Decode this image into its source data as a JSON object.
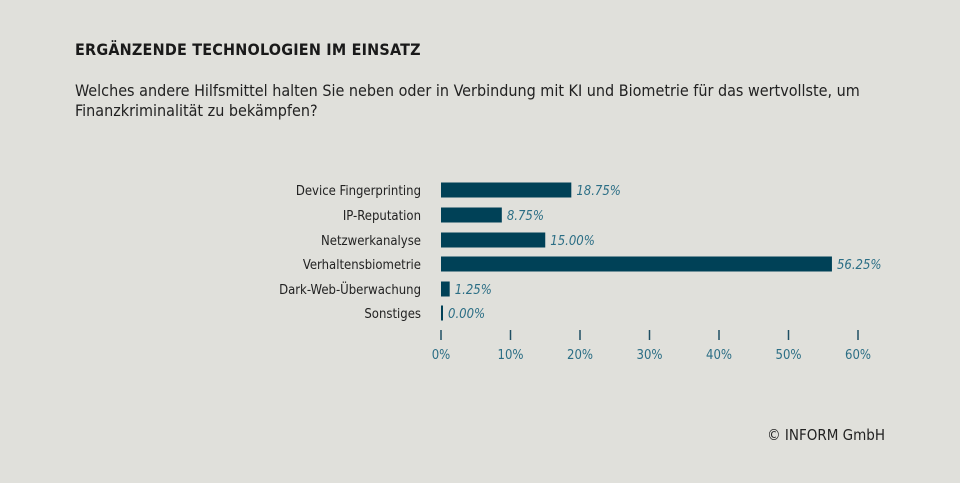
{
  "title": "ERGÄNZENDE TECHNOLOGIEN IM EINSATZ",
  "subtitle": "Welches andere Hilfsmittel halten Sie neben oder in Verbindung mit KI und Biometrie für das wertvollste, um Finanzkriminalität zu bekämpfen?",
  "copyright": "© INFORM GmbH",
  "chart_data": {
    "type": "bar",
    "orientation": "horizontal",
    "categories": [
      "Device Fingerprinting",
      "IP-Reputation",
      "Netzwerkanalyse",
      "Verhaltensbiometrie",
      "Dark-Web-Überwachung",
      "Sonstiges"
    ],
    "values": [
      18.75,
      8.75,
      15.0,
      56.25,
      1.25,
      0.0
    ],
    "value_labels": [
      "18.75%",
      "8.75%",
      "15.00%",
      "56.25%",
      "1.25%",
      "0.00%"
    ],
    "xlim": [
      0,
      60
    ],
    "xticks": [
      "0%",
      "10%",
      "20%",
      "30%",
      "40%",
      "50%",
      "60%"
    ],
    "grid": false,
    "colors": {
      "bar": "#004157",
      "value_label": "#2b6e85",
      "background": "#e0e0db"
    }
  }
}
